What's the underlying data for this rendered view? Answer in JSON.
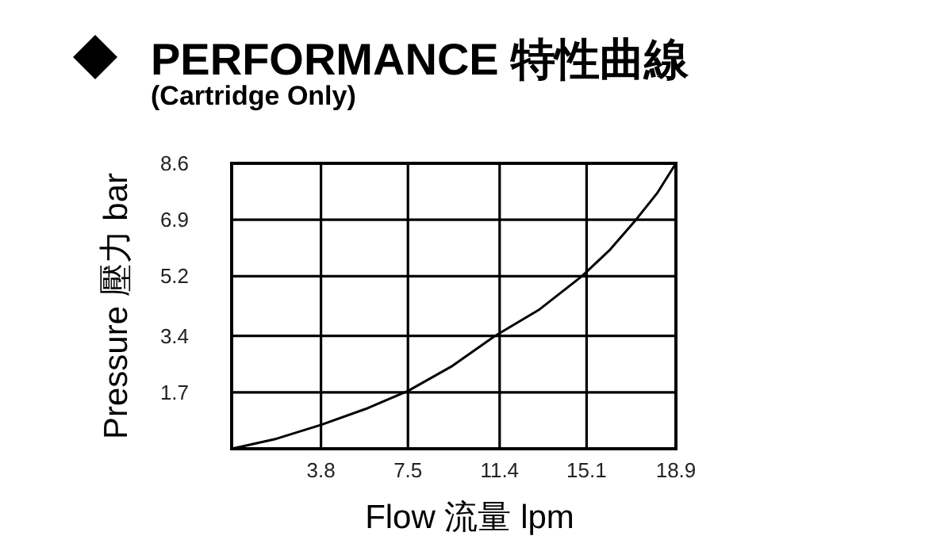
{
  "chart_data": {
    "type": "line",
    "title": "PERFORMANCE 特性曲線",
    "subtitle": "(Cartridge Only)",
    "xlabel": "Flow 流量 lpm",
    "ylabel": "Pressure 壓力 bar",
    "x": [
      0,
      1.9,
      3.8,
      5.7,
      7.5,
      9.4,
      11.2,
      13.1,
      14.9,
      16.1,
      17.2,
      18.1,
      18.9
    ],
    "values": [
      0,
      0.3,
      0.72,
      1.2,
      1.74,
      2.5,
      3.4,
      4.2,
      5.2,
      6.0,
      6.9,
      7.7,
      8.6
    ],
    "color": "#000000",
    "xlim": [
      0,
      18.9
    ],
    "ylim": [
      0,
      8.6
    ],
    "xticks": [
      3.8,
      7.5,
      11.4,
      15.1,
      18.9
    ],
    "yticks": [
      1.7,
      3.4,
      5.2,
      6.9,
      8.6
    ],
    "grid": true,
    "marker": "none",
    "line_style": "solid"
  }
}
